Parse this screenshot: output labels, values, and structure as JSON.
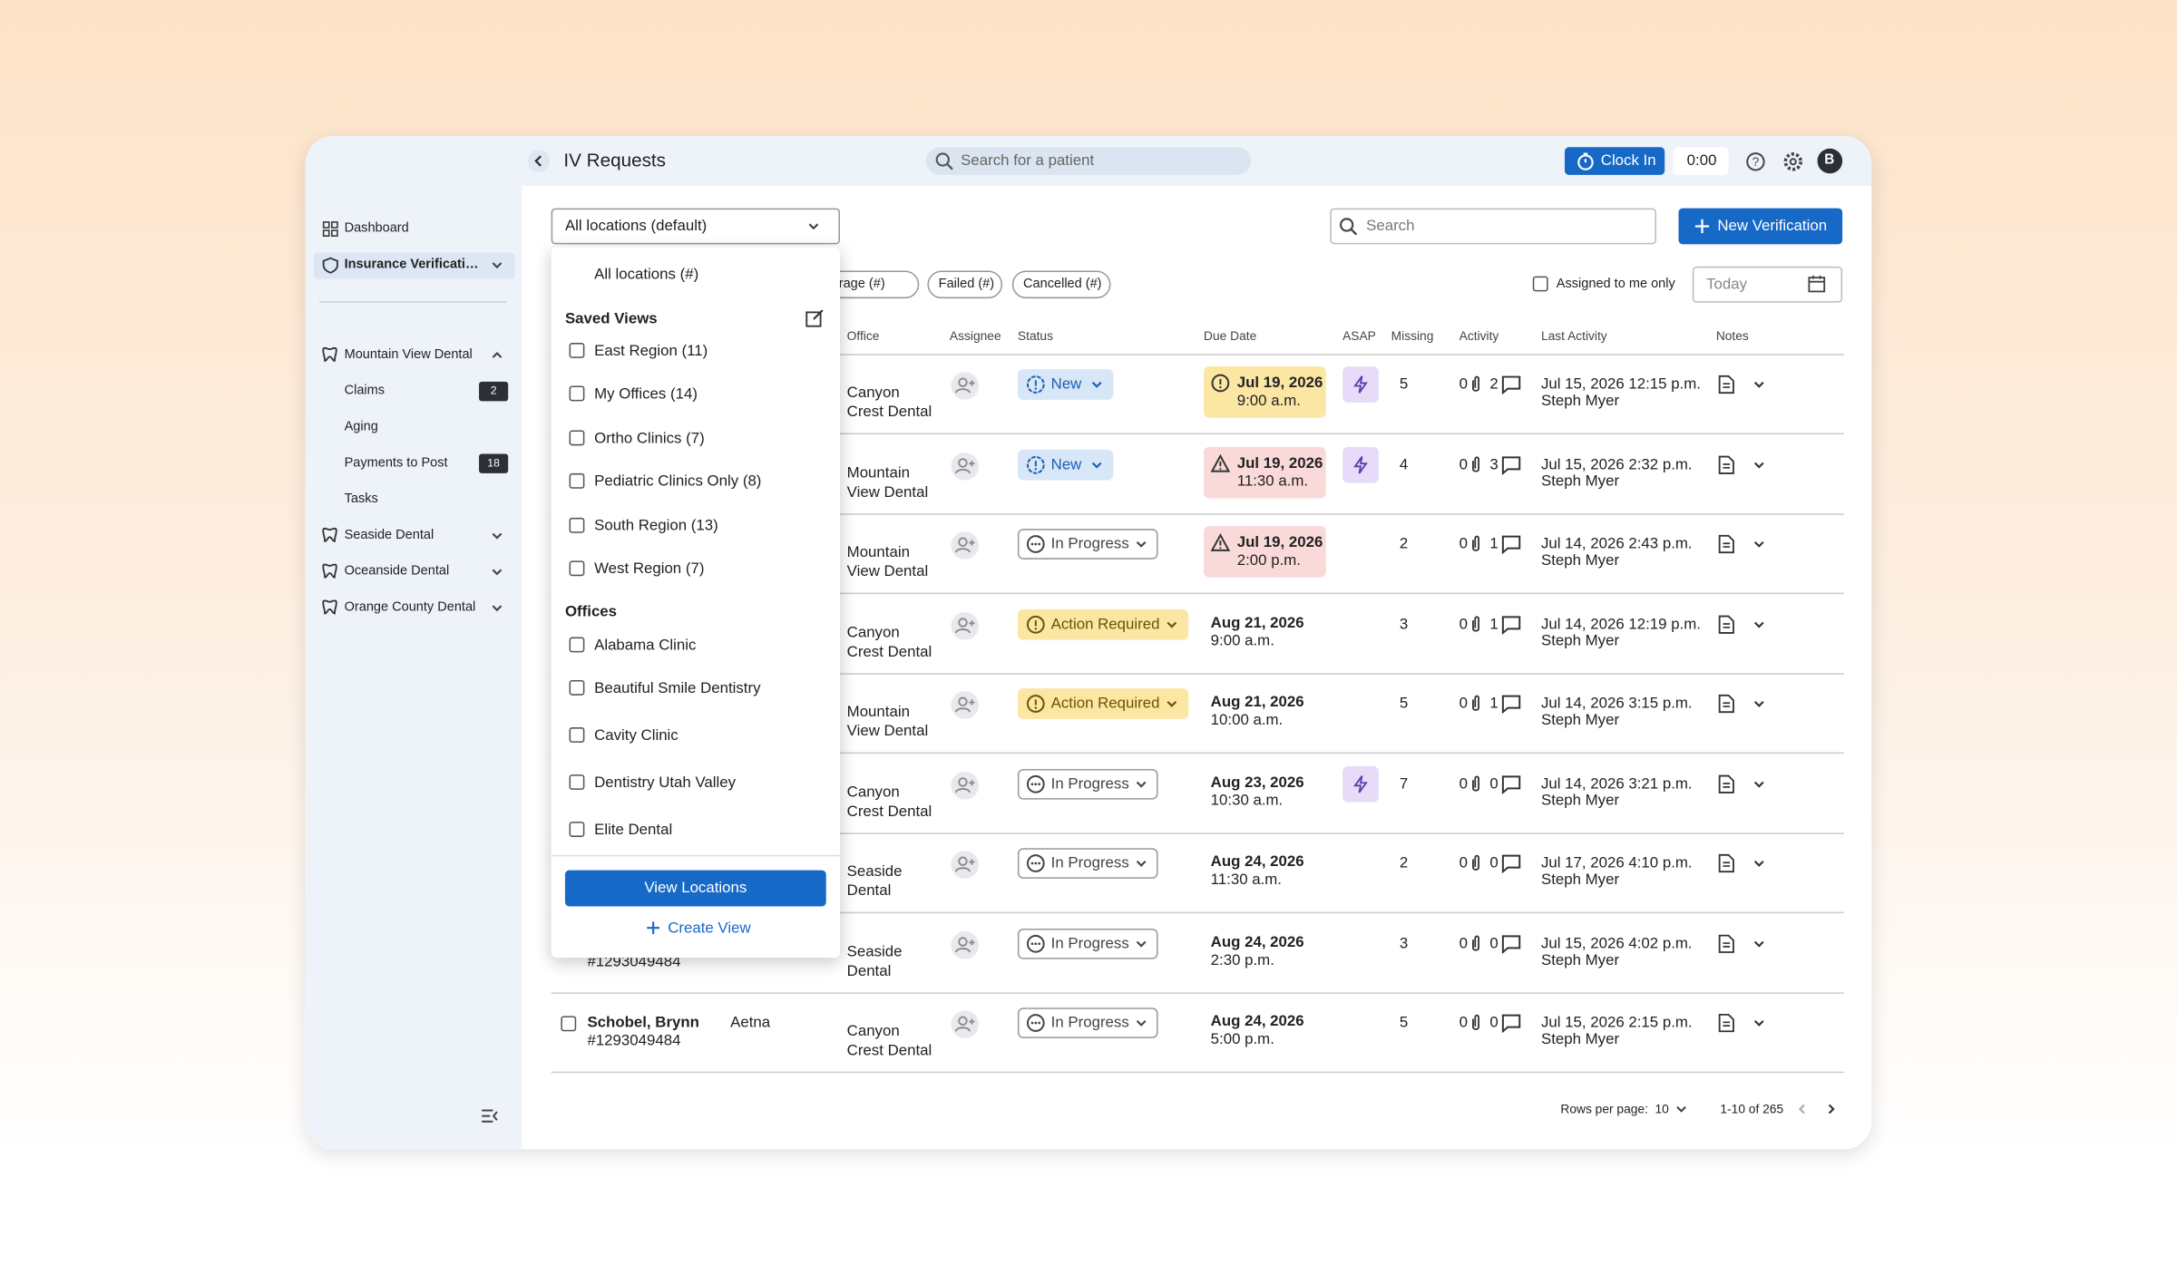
{
  "header": {
    "title": "IV Requests",
    "search_placeholder": "Search for a patient",
    "clock_in": "Clock In",
    "timer": "0:00",
    "avatar": "B"
  },
  "sidebar": {
    "items": [
      {
        "label": "Dashboard",
        "active": false
      },
      {
        "label": "Insurance Verificati…",
        "active": true
      }
    ],
    "groups": [
      {
        "label": "Mountain View Dental",
        "expanded": true,
        "items": [
          {
            "label": "Claims",
            "badge": 2
          },
          {
            "label": "Aging",
            "badge": null
          },
          {
            "label": "Payments to Post",
            "badge": 18
          },
          {
            "label": "Tasks",
            "badge": null
          }
        ]
      },
      {
        "label": "Seaside Dental",
        "expanded": false,
        "items": []
      },
      {
        "label": "Oceanside Dental",
        "expanded": false,
        "items": []
      },
      {
        "label": "Orange County Dental",
        "expanded": false,
        "items": []
      }
    ]
  },
  "toolbar": {
    "location_select": "All locations (default)",
    "search_placeholder": "Search",
    "new_button": "New Verification",
    "filters": [
      "Coverage (#)",
      "Failed (#)",
      "Cancelled (#)"
    ],
    "assigned_only": "Assigned to me only",
    "date_placeholder": "Today"
  },
  "table": {
    "columns": [
      "Office",
      "Assignee",
      "Status",
      "Due Date",
      "ASAP",
      "Missing",
      "Activity",
      "Last Activity",
      "Notes"
    ],
    "rows": [
      {
        "patient": null,
        "patient_id": null,
        "carrier": null,
        "office": "Canyon Crest Dental",
        "status": "New",
        "due_date": "Jul 19, 2026",
        "due_time": "9:00 a.m.",
        "due_flag": "soon",
        "asap": true,
        "missing": 5,
        "attachments": 0,
        "comments": 2,
        "last_activity": "Jul 15, 2026 12:15 p.m.",
        "last_user": "Steph Myer"
      },
      {
        "patient": null,
        "patient_id": null,
        "carrier": null,
        "office": "Mountain View Dental",
        "status": "New",
        "due_date": "Jul 19, 2026",
        "due_time": "11:30 a.m.",
        "due_flag": "overdue",
        "asap": true,
        "missing": 4,
        "attachments": 0,
        "comments": 3,
        "last_activity": "Jul 15, 2026 2:32 p.m.",
        "last_user": "Steph Myer"
      },
      {
        "patient": null,
        "patient_id": null,
        "carrier": null,
        "office": "Mountain View Dental",
        "status": "In Progress",
        "due_date": "Jul 19, 2026",
        "due_time": "2:00 p.m.",
        "due_flag": "overdue",
        "asap": false,
        "missing": 2,
        "attachments": 0,
        "comments": 1,
        "last_activity": "Jul 14, 2026 2:43 p.m.",
        "last_user": "Steph Myer"
      },
      {
        "patient": null,
        "patient_id": null,
        "carrier": null,
        "office": "Canyon Crest Dental",
        "status": "Action Required",
        "due_date": "Aug 21, 2026",
        "due_time": "9:00 a.m.",
        "due_flag": null,
        "asap": false,
        "missing": 3,
        "attachments": 0,
        "comments": 1,
        "last_activity": "Jul 14, 2026 12:19 p.m.",
        "last_user": "Steph Myer"
      },
      {
        "patient": null,
        "patient_id": null,
        "carrier": null,
        "office": "Mountain View Dental",
        "status": "Action Required",
        "due_date": "Aug 21, 2026",
        "due_time": "10:00 a.m.",
        "due_flag": null,
        "asap": false,
        "missing": 5,
        "attachments": 0,
        "comments": 1,
        "last_activity": "Jul 14, 2026 3:15 p.m.",
        "last_user": "Steph Myer"
      },
      {
        "patient": null,
        "patient_id": null,
        "carrier": null,
        "office": "Canyon Crest Dental",
        "status": "In Progress",
        "due_date": "Aug 23, 2026",
        "due_time": "10:30 a.m.",
        "due_flag": null,
        "asap": true,
        "missing": 7,
        "attachments": 0,
        "comments": 0,
        "last_activity": "Jul 14, 2026 3:21 p.m.",
        "last_user": "Steph Myer"
      },
      {
        "patient": null,
        "patient_id": null,
        "carrier": null,
        "office": "Seaside Dental",
        "status": "In Progress",
        "due_date": "Aug 24, 2026",
        "due_time": "11:30 a.m.",
        "due_flag": null,
        "asap": false,
        "missing": 2,
        "attachments": 0,
        "comments": 0,
        "last_activity": "Jul 17, 2026 4:10 p.m.",
        "last_user": "Steph Myer"
      },
      {
        "patient": null,
        "patient_id": "#1293049484",
        "carrier": null,
        "office": "Seaside Dental",
        "status": "In Progress",
        "due_date": "Aug 24, 2026",
        "due_time": "2:30 p.m.",
        "due_flag": null,
        "asap": false,
        "missing": 3,
        "attachments": 0,
        "comments": 0,
        "last_activity": "Jul 15, 2026 4:02 p.m.",
        "last_user": "Steph Myer"
      },
      {
        "patient": "Schobel, Brynn",
        "patient_id": "#1293049484",
        "carrier": "Aetna",
        "office": "Canyon Crest Dental",
        "status": "In Progress",
        "due_date": "Aug 24, 2026",
        "due_time": "5:00 p.m.",
        "due_flag": null,
        "asap": false,
        "missing": 5,
        "attachments": 0,
        "comments": 0,
        "last_activity": "Jul 15, 2026 2:15 p.m.",
        "last_user": "Steph Myer"
      }
    ]
  },
  "pagination": {
    "rows_per_page_label": "Rows per page:",
    "rows_per_page": 10,
    "range": "1-10 of 265"
  },
  "dropdown": {
    "all_option": "All locations (#)",
    "saved_views_title": "Saved Views",
    "saved_views": [
      "East Region (11)",
      "My Offices (14)",
      "Ortho Clinics (7)",
      "Pediatric Clinics Only (8)",
      "South Region (13)",
      "West Region (7)"
    ],
    "offices_title": "Offices",
    "offices": [
      "Alabama Clinic",
      "Beautiful Smile Dentistry",
      "Cavity Clinic",
      "Dentistry Utah Valley",
      "Elite Dental"
    ],
    "primary_button": "View Locations",
    "secondary_button": "Create View"
  }
}
